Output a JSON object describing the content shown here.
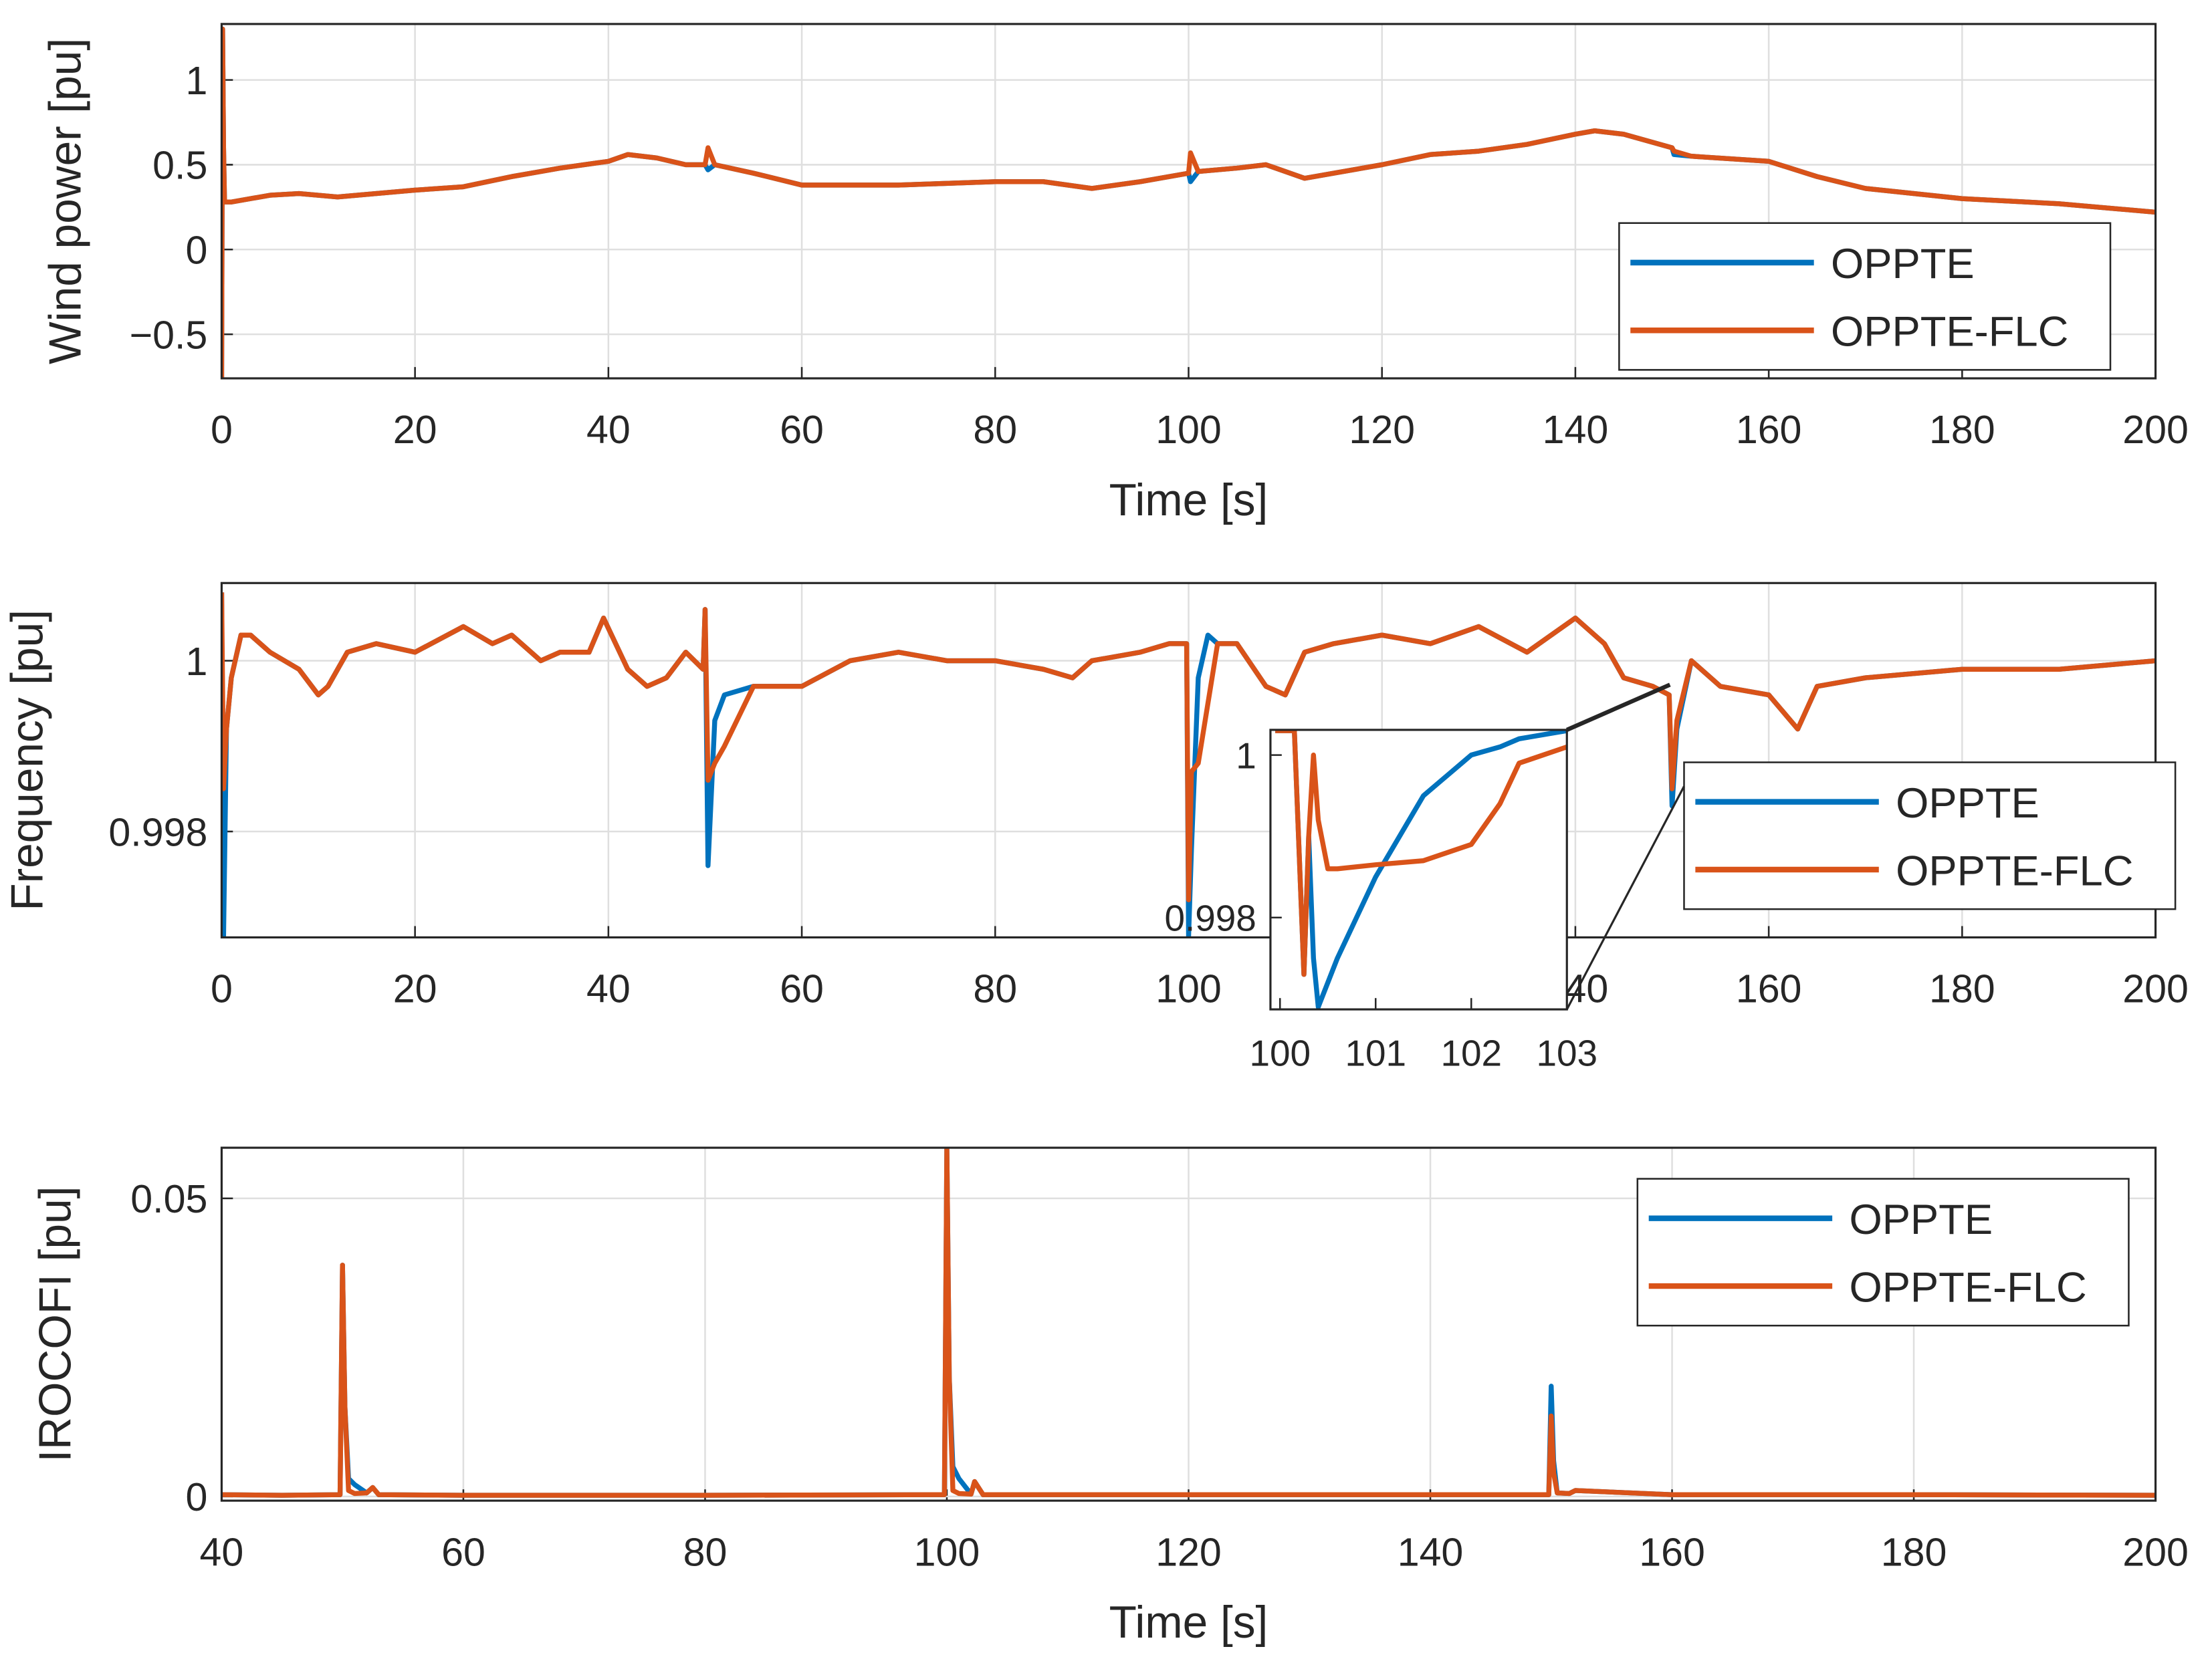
{
  "chart_data": [
    {
      "type": "line",
      "xlabel": "Time [s]",
      "ylabel": "Wind power [pu]",
      "grid": true,
      "legend_loc": "southeast",
      "xlim": [
        0,
        200
      ],
      "xticks": [
        0,
        20,
        40,
        60,
        80,
        100,
        120,
        140,
        160,
        180,
        200
      ],
      "ylim": [
        -0.76,
        1.33
      ],
      "yticks": [
        {
          "value": -0.5,
          "label": "−0.5"
        },
        0,
        0.5,
        1
      ],
      "x": [
        0,
        0.1,
        0.2,
        0.3,
        1,
        5,
        8,
        12,
        20,
        25,
        30,
        35,
        40,
        42,
        45,
        48,
        50,
        50.3,
        51,
        55,
        60,
        70,
        80,
        85,
        90,
        95,
        100,
        100.2,
        101,
        105,
        108,
        112,
        120,
        125,
        130,
        135,
        140,
        142,
        145,
        150,
        150.2,
        152,
        160,
        165,
        170,
        180,
        190,
        200
      ],
      "series": [
        {
          "name": "OPPTE",
          "color": "#0072BD",
          "values": [
            -0.76,
            1.3,
            0.6,
            0.28,
            0.28,
            0.32,
            0.33,
            0.31,
            0.35,
            0.37,
            0.43,
            0.48,
            0.52,
            0.56,
            0.54,
            0.5,
            0.5,
            0.47,
            0.5,
            0.45,
            0.38,
            0.38,
            0.4,
            0.4,
            0.36,
            0.4,
            0.45,
            0.4,
            0.46,
            0.48,
            0.5,
            0.42,
            0.5,
            0.56,
            0.58,
            0.62,
            0.68,
            0.7,
            0.68,
            0.6,
            0.56,
            0.55,
            0.52,
            0.43,
            0.36,
            0.3,
            0.27,
            0.22
          ]
        },
        {
          "name": "OPPTE-FLC",
          "color": "#D95319",
          "values": [
            -0.76,
            1.3,
            0.6,
            0.28,
            0.28,
            0.32,
            0.33,
            0.31,
            0.35,
            0.37,
            0.43,
            0.48,
            0.52,
            0.56,
            0.54,
            0.5,
            0.5,
            0.6,
            0.5,
            0.45,
            0.38,
            0.38,
            0.4,
            0.4,
            0.36,
            0.4,
            0.45,
            0.57,
            0.46,
            0.48,
            0.5,
            0.42,
            0.5,
            0.56,
            0.58,
            0.62,
            0.68,
            0.7,
            0.68,
            0.6,
            0.58,
            0.55,
            0.52,
            0.43,
            0.36,
            0.3,
            0.27,
            0.22
          ]
        }
      ]
    },
    {
      "type": "line",
      "ylabel": "Frequency [pu]",
      "grid": true,
      "legend_loc": "east",
      "xlim": [
        0,
        200
      ],
      "xticks": [
        0,
        20,
        40,
        60,
        80,
        100,
        120,
        140,
        160,
        180,
        200
      ],
      "ylim": [
        0.99676,
        1.00091
      ],
      "yticks": [
        0.998,
        1
      ],
      "x": [
        0,
        0.2,
        0.5,
        1,
        2,
        3,
        5,
        8,
        10,
        11,
        13,
        16,
        20,
        25,
        28,
        30,
        33,
        35,
        38,
        39.5,
        42,
        44,
        46,
        48,
        49.8,
        50,
        50.3,
        51,
        52,
        55,
        60,
        65,
        70,
        75,
        80,
        85,
        88,
        90,
        95,
        98,
        99.8,
        100,
        100.3,
        101,
        102,
        103,
        105,
        108,
        110,
        112,
        115,
        120,
        125,
        130,
        135,
        140,
        143,
        145,
        148,
        149.7,
        150,
        150.5,
        152,
        155,
        160,
        163,
        165,
        170,
        180,
        190,
        200
      ],
      "series": [
        {
          "name": "OPPTE",
          "color": "#0072BD",
          "values": [
            1.0008,
            0.99677,
            0.9992,
            0.9998,
            1.0003,
            1.0003,
            1.0001,
            0.9999,
            0.9996,
            0.9997,
            1.0001,
            1.0002,
            1.0001,
            1.0004,
            1.0002,
            1.0003,
            1.0,
            1.0001,
            1.0001,
            1.0005,
            0.9999,
            0.9997,
            0.9998,
            1.0001,
            0.9999,
            1.0006,
            0.9976,
            0.9993,
            0.9996,
            0.9997,
            0.9997,
            1.0,
            1.0001,
            1.0,
            1.0,
            0.9999,
            0.9998,
            1.0,
            1.0001,
            1.0002,
            1.0002,
            0.99677,
            0.9978,
            0.9998,
            1.0003,
            1.0002,
            1.0002,
            0.9997,
            0.9996,
            1.0001,
            1.0002,
            1.0003,
            1.0002,
            1.0004,
            1.0001,
            1.0005,
            1.0002,
            0.9998,
            0.9997,
            0.9996,
            0.9983,
            0.9992,
            1.0,
            0.9997,
            0.9996,
            0.9992,
            0.9997,
            0.9998,
            0.9999,
            0.9999,
            1.0
          ]
        },
        {
          "name": "OPPTE-FLC",
          "color": "#D95319",
          "values": [
            1.0008,
            0.9985,
            0.9992,
            0.9998,
            1.0003,
            1.0003,
            1.0001,
            0.9999,
            0.9996,
            0.9997,
            1.0001,
            1.0002,
            1.0001,
            1.0004,
            1.0002,
            1.0003,
            1.0,
            1.0001,
            1.0001,
            1.0005,
            0.9999,
            0.9997,
            0.9998,
            1.0001,
            0.9999,
            1.0006,
            0.9986,
            0.9988,
            0.999,
            0.9997,
            0.9997,
            1.0,
            1.0001,
            1.0,
            1.0,
            0.9999,
            0.9998,
            1.0,
            1.0001,
            1.0002,
            1.0002,
            0.9972,
            0.9987,
            0.9988,
            0.9995,
            1.0002,
            1.0002,
            0.9997,
            0.9996,
            1.0001,
            1.0002,
            1.0003,
            1.0002,
            1.0004,
            1.0001,
            1.0005,
            1.0002,
            0.9998,
            0.9997,
            0.9996,
            0.9985,
            0.9993,
            1.0,
            0.9997,
            0.9996,
            0.9992,
            0.9997,
            0.9998,
            0.9999,
            0.9999,
            1.0
          ]
        }
      ]
    },
    {
      "type": "line",
      "xlabel": "Time [s]",
      "ylabel": "IROCOFI [pu]",
      "grid": true,
      "legend_loc": "northeast",
      "xlim": [
        40,
        200
      ],
      "xticks": [
        40,
        60,
        80,
        100,
        120,
        140,
        160,
        180,
        200
      ],
      "ylim": [
        -0.0007,
        0.0585
      ],
      "yticks": [
        0,
        0.05
      ],
      "x": [
        40,
        45,
        49.8,
        50,
        50.2,
        50.5,
        51,
        52,
        52.5,
        53,
        60,
        80,
        99.8,
        100,
        100.2,
        100.5,
        101,
        102,
        102.3,
        103,
        120,
        140,
        149.8,
        150,
        150.2,
        150.5,
        151.5,
        152,
        160,
        180,
        200
      ],
      "series": [
        {
          "name": "OPPTE",
          "color": "#0072BD",
          "values": [
            0.0003,
            0.0002,
            0.0003,
            0.0388,
            0.015,
            0.003,
            0.002,
            0.0006,
            0.0015,
            0.0003,
            0.0002,
            0.0002,
            0.0003,
            0.0585,
            0.02,
            0.005,
            0.003,
            0.0004,
            0.0025,
            0.0003,
            0.0003,
            0.0003,
            0.0003,
            0.0185,
            0.006,
            0.0006,
            0.0005,
            0.001,
            0.0003,
            0.0003,
            0.0002
          ]
        },
        {
          "name": "OPPTE-FLC",
          "color": "#D95319",
          "values": [
            0.0003,
            0.0002,
            0.0003,
            0.0388,
            0.015,
            0.001,
            0.0005,
            0.0006,
            0.0015,
            0.0003,
            0.0002,
            0.0002,
            0.0003,
            0.0585,
            0.02,
            0.001,
            0.0005,
            0.0004,
            0.0025,
            0.0003,
            0.0003,
            0.0003,
            0.0003,
            0.0135,
            0.004,
            0.0006,
            0.0005,
            0.001,
            0.0003,
            0.0003,
            0.0002
          ]
        }
      ]
    },
    {
      "type": "line",
      "grid": false,
      "xlim": [
        99.9,
        103
      ],
      "xticks": [
        100,
        101,
        102,
        103
      ],
      "ylim": [
        0.99687,
        1.00031
      ],
      "yticks": [
        0.998,
        1
      ],
      "x": [
        99.95,
        100.15,
        100.25,
        100.3,
        100.35,
        100.4,
        100.5,
        100.6,
        101,
        101.5,
        102,
        102.3,
        102.5,
        103
      ],
      "series": [
        {
          "name": "OPPTE",
          "color": "#0072BD",
          "values": [
            1.0003,
            1.0003,
            0.9973,
            0.999,
            0.9975,
            0.9969,
            0.9972,
            0.9975,
            0.9985,
            0.9995,
            1.0,
            1.0001,
            1.0002,
            1.0003
          ]
        },
        {
          "name": "OPPTE-FLC",
          "color": "#D95319",
          "values": [
            1.0003,
            1.0003,
            0.9973,
            0.999,
            1.0,
            0.9992,
            0.9986,
            0.9986,
            0.99865,
            0.9987,
            0.9989,
            0.9994,
            0.9999,
            1.0001
          ]
        }
      ]
    }
  ]
}
